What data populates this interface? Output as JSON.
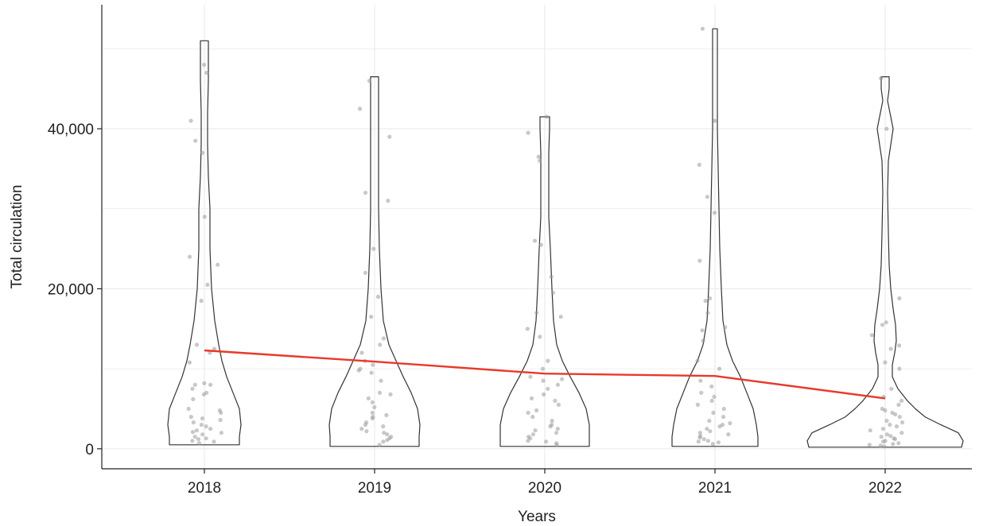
{
  "chart_data": {
    "type": "violin",
    "title": "",
    "xlabel": "Years",
    "ylabel": "Total circulation",
    "categories": [
      "2018",
      "2019",
      "2020",
      "2021",
      "2022"
    ],
    "ylim": [
      -2500,
      55500
    ],
    "yticks": [
      0,
      20000,
      40000
    ],
    "ytick_labels": [
      "0",
      "20,000",
      "40,000"
    ],
    "grid": true,
    "legend": "none",
    "colors": {
      "violin_outline": "#333333",
      "points": "#9a9a9a",
      "trend_line": "#e8392b",
      "grid": "#ebebeb",
      "frame": "#222222"
    },
    "trend": {
      "name": "",
      "values": [
        12300,
        10900,
        9400,
        9100,
        6300
      ]
    },
    "violins": [
      {
        "category": "2018",
        "min": 500,
        "max": 51000,
        "profile": [
          [
            500,
            44
          ],
          [
            1500,
            44
          ],
          [
            3000,
            46
          ],
          [
            5000,
            44
          ],
          [
            7000,
            36
          ],
          [
            9000,
            28
          ],
          [
            11000,
            22
          ],
          [
            13000,
            18
          ],
          [
            16000,
            13
          ],
          [
            20000,
            9
          ],
          [
            25000,
            7
          ],
          [
            30000,
            7
          ],
          [
            34000,
            5
          ],
          [
            38000,
            4
          ],
          [
            42000,
            4
          ],
          [
            46000,
            5
          ],
          [
            49000,
            5
          ],
          [
            51000,
            5
          ]
        ],
        "points": [
          48000,
          47000,
          41000,
          38500,
          37000,
          29000,
          24000,
          23000,
          20500,
          18500,
          13000,
          12500,
          12000,
          10800,
          8200,
          8000,
          8000,
          7500,
          7000,
          6800,
          6200,
          5000,
          4800,
          4500,
          4000,
          3800,
          3600,
          3300,
          3000,
          2800,
          2500,
          2300,
          2100,
          2000,
          1800,
          1500,
          1300,
          1200,
          1000,
          900,
          700
        ]
      },
      {
        "category": "2019",
        "min": 300,
        "max": 46500,
        "profile": [
          [
            300,
            56
          ],
          [
            1500,
            56
          ],
          [
            3000,
            57
          ],
          [
            5000,
            54
          ],
          [
            7000,
            46
          ],
          [
            9000,
            36
          ],
          [
            11000,
            27
          ],
          [
            13000,
            18
          ],
          [
            16000,
            11
          ],
          [
            20000,
            8
          ],
          [
            25000,
            6
          ],
          [
            30000,
            5
          ],
          [
            35000,
            5
          ],
          [
            40000,
            5
          ],
          [
            44000,
            5
          ],
          [
            46500,
            5
          ]
        ],
        "points": [
          46000,
          42500,
          39000,
          32000,
          31000,
          25000,
          22000,
          19000,
          16500,
          13800,
          13000,
          12000,
          11000,
          10500,
          10000,
          9800,
          9500,
          8500,
          7000,
          6800,
          6300,
          5800,
          5200,
          4500,
          4200,
          4000,
          3800,
          3300,
          3000,
          2800,
          2500,
          2200,
          2000,
          1800,
          1500,
          1300,
          1100,
          900,
          500
        ]
      },
      {
        "category": "2020",
        "min": 300,
        "max": 41500,
        "profile": [
          [
            300,
            56
          ],
          [
            1500,
            56
          ],
          [
            3000,
            56
          ],
          [
            5000,
            52
          ],
          [
            7000,
            43
          ],
          [
            9000,
            32
          ],
          [
            11000,
            22
          ],
          [
            13000,
            15
          ],
          [
            16000,
            11
          ],
          [
            20000,
            9
          ],
          [
            25000,
            7
          ],
          [
            29000,
            5
          ],
          [
            33000,
            5
          ],
          [
            37000,
            5
          ],
          [
            40000,
            6
          ],
          [
            41500,
            6
          ]
        ],
        "points": [
          41500,
          39500,
          36500,
          36000,
          26000,
          25500,
          21500,
          19500,
          17000,
          16500,
          15000,
          14000,
          11000,
          10000,
          9000,
          8700,
          8500,
          8000,
          7500,
          6800,
          6300,
          6000,
          5500,
          4800,
          4500,
          4000,
          3500,
          3000,
          2800,
          2500,
          2300,
          2000,
          1800,
          1500,
          1300,
          1000,
          900,
          700,
          500
        ]
      },
      {
        "category": "2021",
        "min": 300,
        "max": 52500,
        "profile": [
          [
            300,
            54
          ],
          [
            1500,
            54
          ],
          [
            3000,
            52
          ],
          [
            5000,
            48
          ],
          [
            7000,
            40
          ],
          [
            9000,
            32
          ],
          [
            11000,
            22
          ],
          [
            13000,
            15
          ],
          [
            16000,
            10
          ],
          [
            20000,
            8
          ],
          [
            25000,
            6
          ],
          [
            30000,
            5
          ],
          [
            35000,
            4
          ],
          [
            40000,
            3
          ],
          [
            45000,
            3
          ],
          [
            50000,
            3
          ],
          [
            52500,
            3
          ]
        ],
        "points": [
          52500,
          41000,
          35500,
          31500,
          29500,
          23500,
          18800,
          18500,
          17000,
          15200,
          14800,
          13500,
          11000,
          10000,
          8500,
          7800,
          7000,
          6500,
          6000,
          5500,
          5000,
          4500,
          4000,
          3500,
          3200,
          3000,
          2800,
          2500,
          2200,
          2000,
          1800,
          1600,
          1400,
          1200,
          1000,
          900,
          800,
          600
        ]
      },
      {
        "category": "2022",
        "min": 200,
        "max": 46500,
        "profile": [
          [
            200,
            96
          ],
          [
            1000,
            98
          ],
          [
            2000,
            92
          ],
          [
            3000,
            70
          ],
          [
            4000,
            50
          ],
          [
            5000,
            38
          ],
          [
            6000,
            28
          ],
          [
            7500,
            16
          ],
          [
            9000,
            9
          ],
          [
            10500,
            9
          ],
          [
            12000,
            12
          ],
          [
            13500,
            14
          ],
          [
            15500,
            13
          ],
          [
            17500,
            10
          ],
          [
            20000,
            7
          ],
          [
            23000,
            5
          ],
          [
            27000,
            4
          ],
          [
            32000,
            3
          ],
          [
            36000,
            4
          ],
          [
            38000,
            7
          ],
          [
            40000,
            10
          ],
          [
            42000,
            6
          ],
          [
            43500,
            3
          ],
          [
            45000,
            5
          ],
          [
            46500,
            5
          ]
        ],
        "points": [
          46300,
          40000,
          18800,
          15800,
          15500,
          14200,
          12900,
          12500,
          10800,
          10000,
          7500,
          6500,
          6000,
          5500,
          5000,
          4800,
          4500,
          4300,
          4000,
          3500,
          3300,
          3000,
          2800,
          2500,
          2300,
          2000,
          1800,
          1600,
          1500,
          1300,
          1200,
          1000,
          900,
          700,
          600,
          500,
          400,
          300
        ]
      }
    ]
  }
}
